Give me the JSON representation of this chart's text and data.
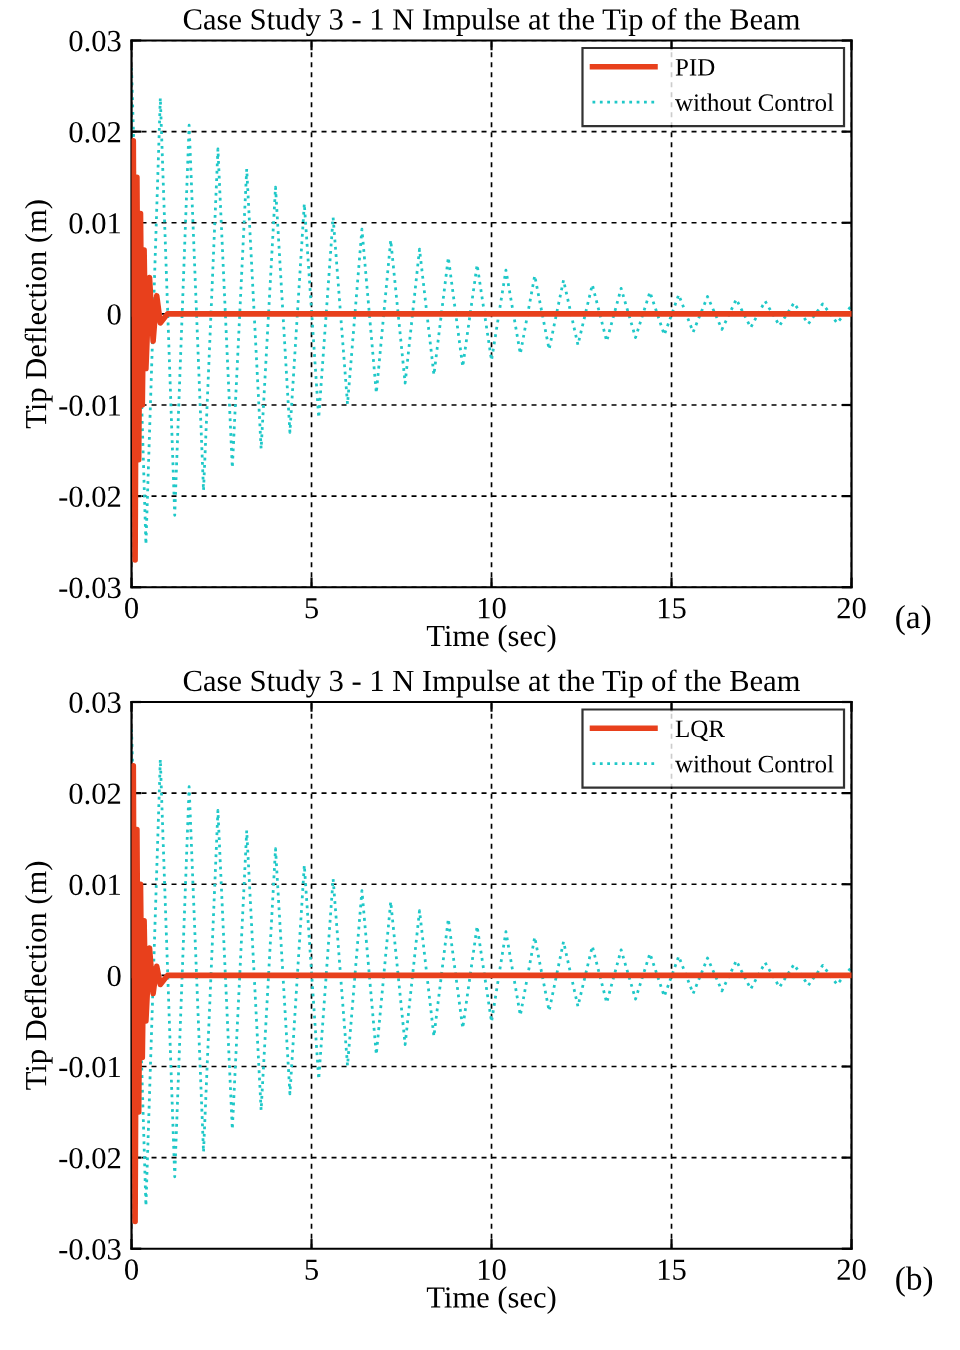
{
  "chart_data": [
    {
      "type": "line",
      "title": "Case Study 3 - 1 N Impulse at the Tip of the Beam",
      "xlabel": "Time (sec)",
      "ylabel": "Tip Deflection (m)",
      "xlim": [
        0,
        20
      ],
      "ylim": [
        -0.03,
        0.03
      ],
      "xticks": [
        0,
        5,
        10,
        15,
        20
      ],
      "yticks": [
        -0.03,
        -0.02,
        -0.01,
        0,
        0.01,
        0.02,
        0.03
      ],
      "grid": true,
      "legend": "top right",
      "annotations": [
        "(a)"
      ],
      "series": [
        {
          "name": "PID",
          "color": "#e8401c",
          "line_style": "solid",
          "x": [
            0,
            0.05,
            0.1,
            0.15,
            0.2,
            0.25,
            0.3,
            0.35,
            0.4,
            0.5,
            0.6,
            0.7,
            0.8,
            1.0,
            20
          ],
          "values": [
            0,
            0.019,
            -0.027,
            0.015,
            -0.016,
            0.011,
            -0.01,
            0.007,
            -0.006,
            0.004,
            -0.003,
            0.002,
            -0.001,
            0,
            0
          ]
        },
        {
          "name": "without Control",
          "color": "#1fc8c8",
          "line_style": "dotted",
          "x": [
            0,
            0.4,
            0.8,
            1.2,
            1.6,
            2.0,
            2.4,
            2.8,
            3.2,
            3.6,
            4.0,
            4.4,
            4.8,
            5.2,
            5.6,
            6.0,
            6.4,
            6.8,
            7.2,
            7.6,
            8.0,
            8.4,
            8.8,
            9.2,
            9.6,
            10.0,
            10.4,
            10.8,
            11.2,
            11.6,
            12.0,
            12.4,
            12.8,
            13.2,
            13.6,
            14.0,
            14.4,
            14.8,
            15.2,
            15.6,
            16.0,
            16.4,
            16.8,
            17.2,
            17.6,
            18.0,
            18.4,
            18.8,
            19.2,
            19.6,
            20.0
          ],
          "values": [
            0.027,
            -0.0253,
            0.0237,
            -0.0221,
            0.0207,
            -0.0194,
            0.0181,
            -0.0169,
            0.0159,
            -0.0148,
            0.0139,
            -0.013,
            0.0121,
            -0.0114,
            0.0106,
            -0.0099,
            0.0093,
            -0.0087,
            0.0081,
            -0.0076,
            0.0071,
            -0.0067,
            0.0062,
            -0.0058,
            0.0054,
            -0.0051,
            0.0048,
            -0.0044,
            0.0042,
            -0.0039,
            0.0037,
            -0.0034,
            0.0032,
            -0.003,
            0.0028,
            -0.0026,
            0.0024,
            -0.0023,
            0.0021,
            -0.002,
            0.0019,
            -0.0017,
            0.0016,
            -0.0015,
            0.0014,
            -0.0013,
            0.0012,
            -0.0011,
            0.0011,
            -0.001,
            0.0009
          ]
        }
      ]
    },
    {
      "type": "line",
      "title": "Case Study 3 - 1 N Impulse at the Tip of the Beam",
      "xlabel": "Time (sec)",
      "ylabel": "Tip Deflection (m)",
      "xlim": [
        0,
        20
      ],
      "ylim": [
        -0.03,
        0.03
      ],
      "xticks": [
        0,
        5,
        10,
        15,
        20
      ],
      "yticks": [
        -0.03,
        -0.02,
        -0.01,
        0,
        0.01,
        0.02,
        0.03
      ],
      "grid": true,
      "legend": "top right",
      "annotations": [
        "(b)"
      ],
      "series": [
        {
          "name": "LQR",
          "color": "#e8401c",
          "line_style": "solid",
          "x": [
            0,
            0.05,
            0.1,
            0.15,
            0.2,
            0.25,
            0.3,
            0.35,
            0.4,
            0.5,
            0.6,
            0.7,
            0.8,
            1.0,
            20
          ],
          "values": [
            0,
            0.023,
            -0.027,
            0.016,
            -0.015,
            0.01,
            -0.009,
            0.006,
            -0.005,
            0.003,
            -0.002,
            0.001,
            -0.001,
            0,
            0
          ]
        },
        {
          "name": "without Control",
          "color": "#1fc8c8",
          "line_style": "dotted",
          "x": [
            0,
            0.4,
            0.8,
            1.2,
            1.6,
            2.0,
            2.4,
            2.8,
            3.2,
            3.6,
            4.0,
            4.4,
            4.8,
            5.2,
            5.6,
            6.0,
            6.4,
            6.8,
            7.2,
            7.6,
            8.0,
            8.4,
            8.8,
            9.2,
            9.6,
            10.0,
            10.4,
            10.8,
            11.2,
            11.6,
            12.0,
            12.4,
            12.8,
            13.2,
            13.6,
            14.0,
            14.4,
            14.8,
            15.2,
            15.6,
            16.0,
            16.4,
            16.8,
            17.2,
            17.6,
            18.0,
            18.4,
            18.8,
            19.2,
            19.6,
            20.0
          ],
          "values": [
            0.027,
            -0.0253,
            0.0237,
            -0.0221,
            0.0207,
            -0.0194,
            0.0181,
            -0.0169,
            0.0159,
            -0.0148,
            0.0139,
            -0.013,
            0.0121,
            -0.0114,
            0.0106,
            -0.0099,
            0.0093,
            -0.0087,
            0.0081,
            -0.0076,
            0.0071,
            -0.0067,
            0.0062,
            -0.0058,
            0.0054,
            -0.0051,
            0.0048,
            -0.0044,
            0.0042,
            -0.0039,
            0.0037,
            -0.0034,
            0.0032,
            -0.003,
            0.0028,
            -0.0026,
            0.0024,
            -0.0023,
            0.0021,
            -0.002,
            0.0019,
            -0.0017,
            0.0016,
            -0.0015,
            0.0014,
            -0.0013,
            0.0012,
            -0.0011,
            0.0011,
            -0.001,
            0.0009
          ]
        }
      ]
    }
  ]
}
